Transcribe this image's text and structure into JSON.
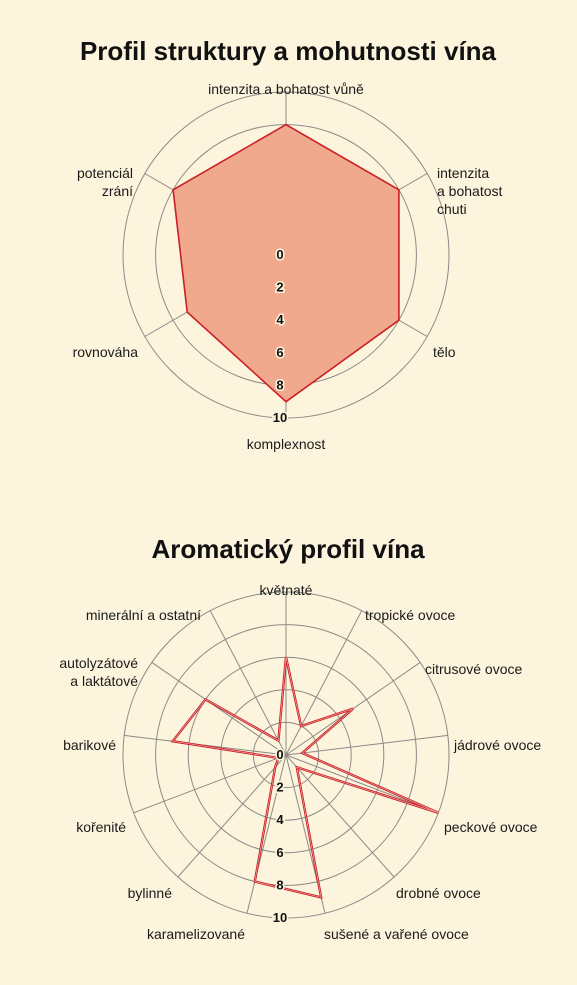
{
  "chart_data": [
    {
      "type": "radar",
      "title": "Profil struktury a mohutnosti vína",
      "axes": [
        "intenzita a bohatost vůně",
        "intenzita a bohatost chuti",
        "tělo",
        "komplexnost",
        "rovnováha",
        "potenciál zrání"
      ],
      "axes_lines": [
        [
          "intenzita a bohatost vůně"
        ],
        [
          "intenzita",
          "a bohatost",
          "chuti"
        ],
        [
          "tělo"
        ],
        [
          "komplexnost"
        ],
        [
          "rovnováha"
        ],
        [
          "potenciál",
          "zrání"
        ]
      ],
      "ticks": [
        "0",
        "2",
        "4",
        "6",
        "8",
        "10"
      ],
      "rmin": 0,
      "rmax": 10,
      "values": [
        8,
        8,
        8,
        9,
        7,
        8
      ],
      "fill": "#f0a98c",
      "stroke": "#cc1f27",
      "grid": true
    },
    {
      "type": "radar",
      "title": "Aromatický profil vína",
      "axes": [
        "květnaté",
        "tropické ovoce",
        "citrusové ovoce",
        "jádrové ovoce",
        "peckové ovoce",
        "drobné ovoce",
        "sušené a vařené ovoce",
        "karamelizované",
        "bylinné",
        "kořenité",
        "barikové",
        "autolyzátové a laktátové",
        "minerální a ostatní"
      ],
      "axes_lines": [
        [
          "květnaté"
        ],
        [
          "tropické ovoce"
        ],
        [
          "citrusové ovoce"
        ],
        [
          "jádrové ovoce"
        ],
        [
          "peckové ovoce"
        ],
        [
          "drobné ovoce"
        ],
        [
          "sušené a vařené ovoce"
        ],
        [
          "karamelizované"
        ],
        [
          "bylinné"
        ],
        [
          "kořenité"
        ],
        [
          "barikové"
        ],
        [
          "autolyzátové",
          "a laktátové"
        ],
        [
          "minerální a ostatní"
        ]
      ],
      "ticks": [
        "0",
        "2",
        "4",
        "6",
        "8",
        "10"
      ],
      "rmin": 0,
      "rmax": 10,
      "values": [
        6,
        2,
        5,
        1,
        10,
        1,
        9,
        8,
        1,
        0.5,
        7,
        6,
        1
      ],
      "fill": "none",
      "stroke": "#cc1f27",
      "grid": true
    }
  ]
}
